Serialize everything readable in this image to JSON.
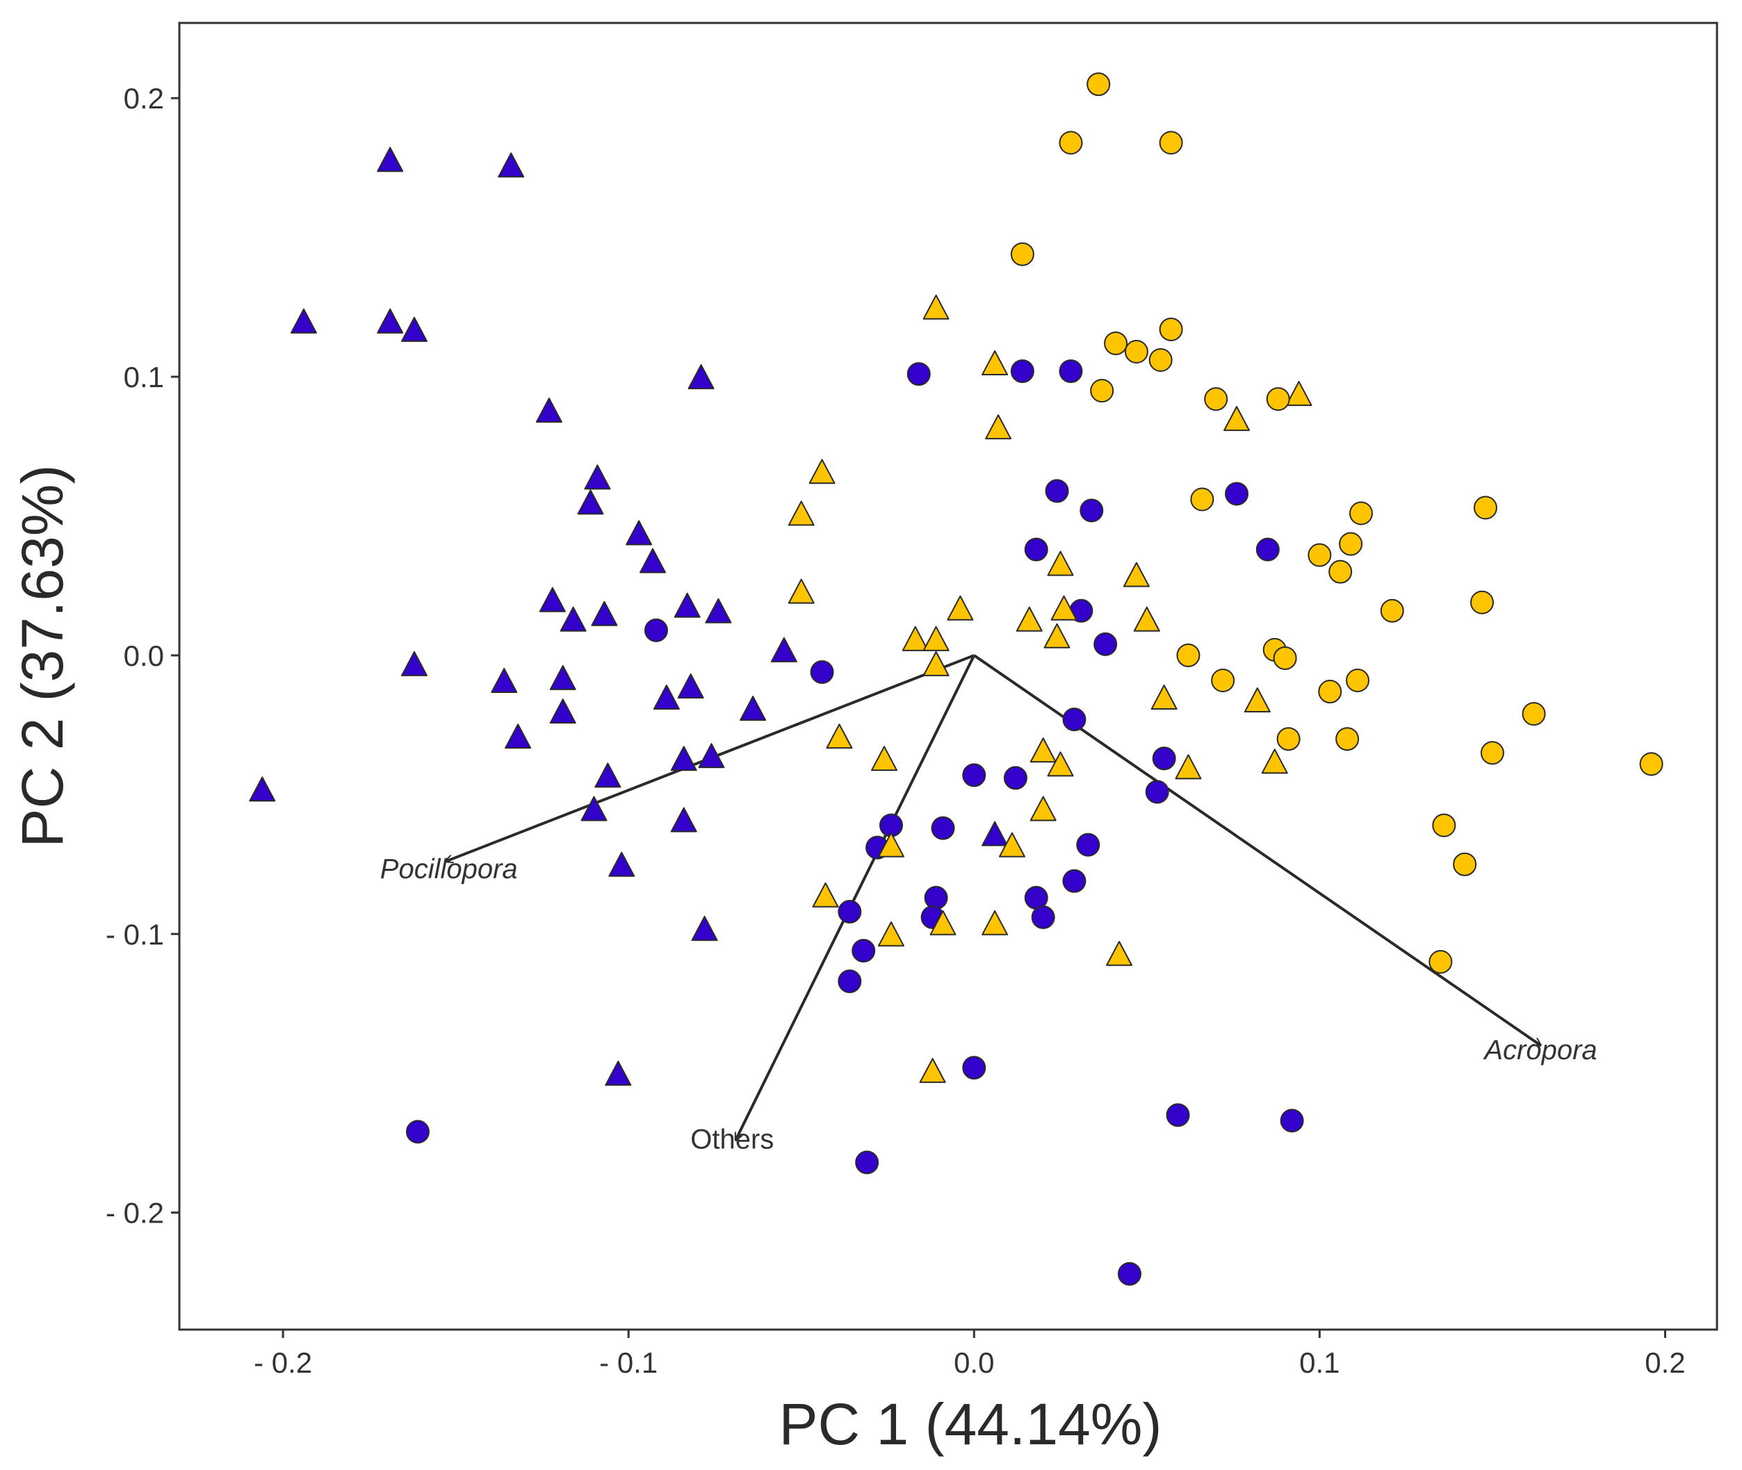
{
  "chart_data": {
    "type": "scatter",
    "title": "",
    "xlabel": "PC 1 (44.14%)",
    "ylabel": "PC 2 (37.63%)",
    "xlim": [
      -0.23,
      0.215
    ],
    "ylim": [
      -0.242,
      0.227
    ],
    "x_ticks": [
      -0.2,
      -0.1,
      0.0,
      0.1,
      0.2
    ],
    "y_ticks": [
      -0.2,
      -0.1,
      0.0,
      0.1,
      0.2
    ],
    "x_tick_labels": [
      "- 0.2",
      "- 0.1",
      "0.0",
      "0.1",
      "0.2"
    ],
    "y_tick_labels": [
      "- 0.2",
      "- 0.1",
      "0.0",
      "0.1",
      "0.2"
    ],
    "grid": false,
    "colors": {
      "purple": "#3300CC",
      "yellow": "#FFC400",
      "marker_edge": "#2a2a2a",
      "vector": "#2a2a2a",
      "frame": "#333333"
    },
    "series": [
      {
        "name": "purple-triangles",
        "marker": "triangle",
        "color": "#3300CC",
        "points": [
          [
            -0.169,
            0.177
          ],
          [
            -0.134,
            0.175
          ],
          [
            -0.194,
            0.119
          ],
          [
            -0.169,
            0.119
          ],
          [
            -0.162,
            0.116
          ],
          [
            -0.079,
            0.099
          ],
          [
            -0.123,
            0.087
          ],
          [
            -0.109,
            0.063
          ],
          [
            -0.111,
            0.054
          ],
          [
            -0.097,
            0.043
          ],
          [
            -0.093,
            0.033
          ],
          [
            -0.122,
            0.019
          ],
          [
            -0.116,
            0.012
          ],
          [
            -0.107,
            0.014
          ],
          [
            -0.083,
            0.017
          ],
          [
            -0.074,
            0.015
          ],
          [
            -0.162,
            -0.004
          ],
          [
            -0.136,
            -0.01
          ],
          [
            -0.119,
            -0.009
          ],
          [
            -0.055,
            0.001
          ],
          [
            -0.089,
            -0.016
          ],
          [
            -0.082,
            -0.012
          ],
          [
            -0.064,
            -0.02
          ],
          [
            -0.119,
            -0.021
          ],
          [
            -0.132,
            -0.03
          ],
          [
            -0.084,
            -0.038
          ],
          [
            -0.076,
            -0.037
          ],
          [
            -0.106,
            -0.044
          ],
          [
            -0.11,
            -0.056
          ],
          [
            -0.084,
            -0.06
          ],
          [
            -0.206,
            -0.049
          ],
          [
            -0.102,
            -0.076
          ],
          [
            -0.078,
            -0.099
          ],
          [
            -0.103,
            -0.151
          ],
          [
            0.006,
            -0.065
          ]
        ]
      },
      {
        "name": "purple-circles",
        "marker": "circle",
        "color": "#3300CC",
        "points": [
          [
            -0.016,
            0.101
          ],
          [
            0.014,
            0.102
          ],
          [
            0.028,
            0.102
          ],
          [
            0.024,
            0.059
          ],
          [
            0.034,
            0.052
          ],
          [
            0.076,
            0.058
          ],
          [
            0.018,
            0.038
          ],
          [
            0.085,
            0.038
          ],
          [
            0.031,
            0.016
          ],
          [
            0.038,
            0.004
          ],
          [
            -0.092,
            0.009
          ],
          [
            -0.044,
            -0.006
          ],
          [
            0.029,
            -0.023
          ],
          [
            0.055,
            -0.037
          ],
          [
            0.053,
            -0.049
          ],
          [
            0.0,
            -0.043
          ],
          [
            0.012,
            -0.044
          ],
          [
            -0.024,
            -0.061
          ],
          [
            -0.009,
            -0.062
          ],
          [
            -0.028,
            -0.069
          ],
          [
            0.033,
            -0.068
          ],
          [
            -0.011,
            -0.087
          ],
          [
            -0.012,
            -0.094
          ],
          [
            0.018,
            -0.087
          ],
          [
            0.02,
            -0.094
          ],
          [
            0.029,
            -0.081
          ],
          [
            -0.036,
            -0.092
          ],
          [
            -0.032,
            -0.106
          ],
          [
            -0.036,
            -0.117
          ],
          [
            0.0,
            -0.148
          ],
          [
            -0.161,
            -0.171
          ],
          [
            -0.031,
            -0.182
          ],
          [
            0.059,
            -0.165
          ],
          [
            0.092,
            -0.167
          ],
          [
            0.045,
            -0.222
          ]
        ]
      },
      {
        "name": "yellow-triangles",
        "marker": "triangle",
        "color": "#FFC400",
        "points": [
          [
            -0.011,
            0.124
          ],
          [
            0.006,
            0.104
          ],
          [
            0.007,
            0.081
          ],
          [
            -0.044,
            0.065
          ],
          [
            -0.05,
            0.05
          ],
          [
            0.076,
            0.084
          ],
          [
            0.094,
            0.093
          ],
          [
            -0.05,
            0.022
          ],
          [
            0.025,
            0.032
          ],
          [
            0.047,
            0.028
          ],
          [
            -0.004,
            0.016
          ],
          [
            0.016,
            0.012
          ],
          [
            0.026,
            0.016
          ],
          [
            0.05,
            0.012
          ],
          [
            -0.017,
            0.005
          ],
          [
            -0.011,
            0.005
          ],
          [
            0.024,
            0.006
          ],
          [
            -0.011,
            -0.004
          ],
          [
            0.055,
            -0.016
          ],
          [
            0.082,
            -0.017
          ],
          [
            -0.039,
            -0.03
          ],
          [
            -0.026,
            -0.038
          ],
          [
            0.02,
            -0.035
          ],
          [
            0.025,
            -0.04
          ],
          [
            0.062,
            -0.041
          ],
          [
            0.087,
            -0.039
          ],
          [
            0.02,
            -0.056
          ],
          [
            -0.024,
            -0.069
          ],
          [
            0.011,
            -0.069
          ],
          [
            -0.043,
            -0.087
          ],
          [
            -0.009,
            -0.097
          ],
          [
            0.006,
            -0.097
          ],
          [
            -0.024,
            -0.101
          ],
          [
            0.042,
            -0.108
          ],
          [
            -0.012,
            -0.15
          ]
        ]
      },
      {
        "name": "yellow-circles",
        "marker": "circle",
        "color": "#FFC400",
        "points": [
          [
            0.036,
            0.205
          ],
          [
            0.028,
            0.184
          ],
          [
            0.057,
            0.184
          ],
          [
            0.014,
            0.144
          ],
          [
            0.057,
            0.117
          ],
          [
            0.041,
            0.112
          ],
          [
            0.047,
            0.109
          ],
          [
            0.054,
            0.106
          ],
          [
            0.037,
            0.095
          ],
          [
            0.07,
            0.092
          ],
          [
            0.088,
            0.092
          ],
          [
            0.066,
            0.056
          ],
          [
            0.112,
            0.051
          ],
          [
            0.148,
            0.053
          ],
          [
            0.109,
            0.04
          ],
          [
            0.1,
            0.036
          ],
          [
            0.106,
            0.03
          ],
          [
            0.147,
            0.019
          ],
          [
            0.121,
            0.016
          ],
          [
            0.062,
            0.0
          ],
          [
            0.087,
            0.002
          ],
          [
            0.09,
            -0.001
          ],
          [
            0.072,
            -0.009
          ],
          [
            0.103,
            -0.013
          ],
          [
            0.111,
            -0.009
          ],
          [
            0.162,
            -0.021
          ],
          [
            0.091,
            -0.03
          ],
          [
            0.108,
            -0.03
          ],
          [
            0.15,
            -0.035
          ],
          [
            0.196,
            -0.039
          ],
          [
            0.136,
            -0.061
          ],
          [
            0.142,
            -0.075
          ],
          [
            0.135,
            -0.11
          ]
        ]
      }
    ],
    "vectors": [
      {
        "name": "Pocillopora",
        "x": -0.153,
        "y": -0.074,
        "italic": true,
        "label_x": -0.152,
        "label_y": -0.08
      },
      {
        "name": "Others",
        "x": -0.069,
        "y": -0.174,
        "italic": false,
        "label_x": -0.07,
        "label_y": -0.177
      },
      {
        "name": "Acropora",
        "x": 0.164,
        "y": -0.14,
        "italic": true,
        "label_x": 0.164,
        "label_y": -0.145
      }
    ]
  }
}
